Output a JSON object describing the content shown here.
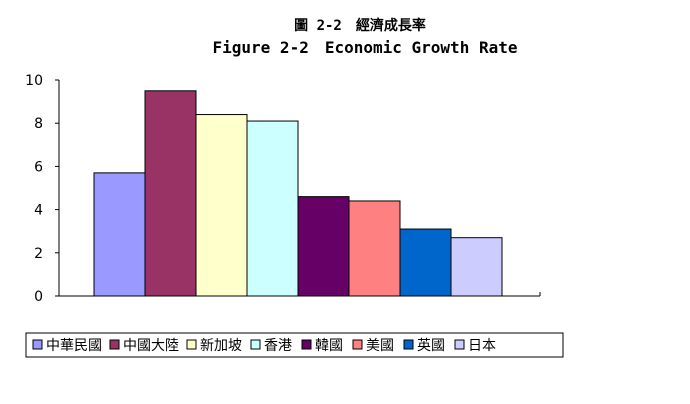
{
  "chart_data": {
    "type": "bar",
    "title": "圖 2-2　經濟成長率",
    "subtitle": "Figure 2-2　Economic Growth Rate",
    "xlabel": "",
    "ylabel": "",
    "ylim": [
      0,
      10
    ],
    "yticks": [
      0,
      2,
      4,
      6,
      8,
      10
    ],
    "grid": false,
    "legend_position": "bottom",
    "categories": [
      "中華民國",
      "中國大陸",
      "新加坡",
      "香港",
      "韓國",
      "美國",
      "英國",
      "日本"
    ],
    "values": [
      5.7,
      9.5,
      8.4,
      8.1,
      4.6,
      4.4,
      3.1,
      2.7
    ],
    "colors": [
      "#9999ff",
      "#993366",
      "#ffffcc",
      "#ccffff",
      "#660066",
      "#ff8080",
      "#0066cc",
      "#ccccff"
    ]
  }
}
